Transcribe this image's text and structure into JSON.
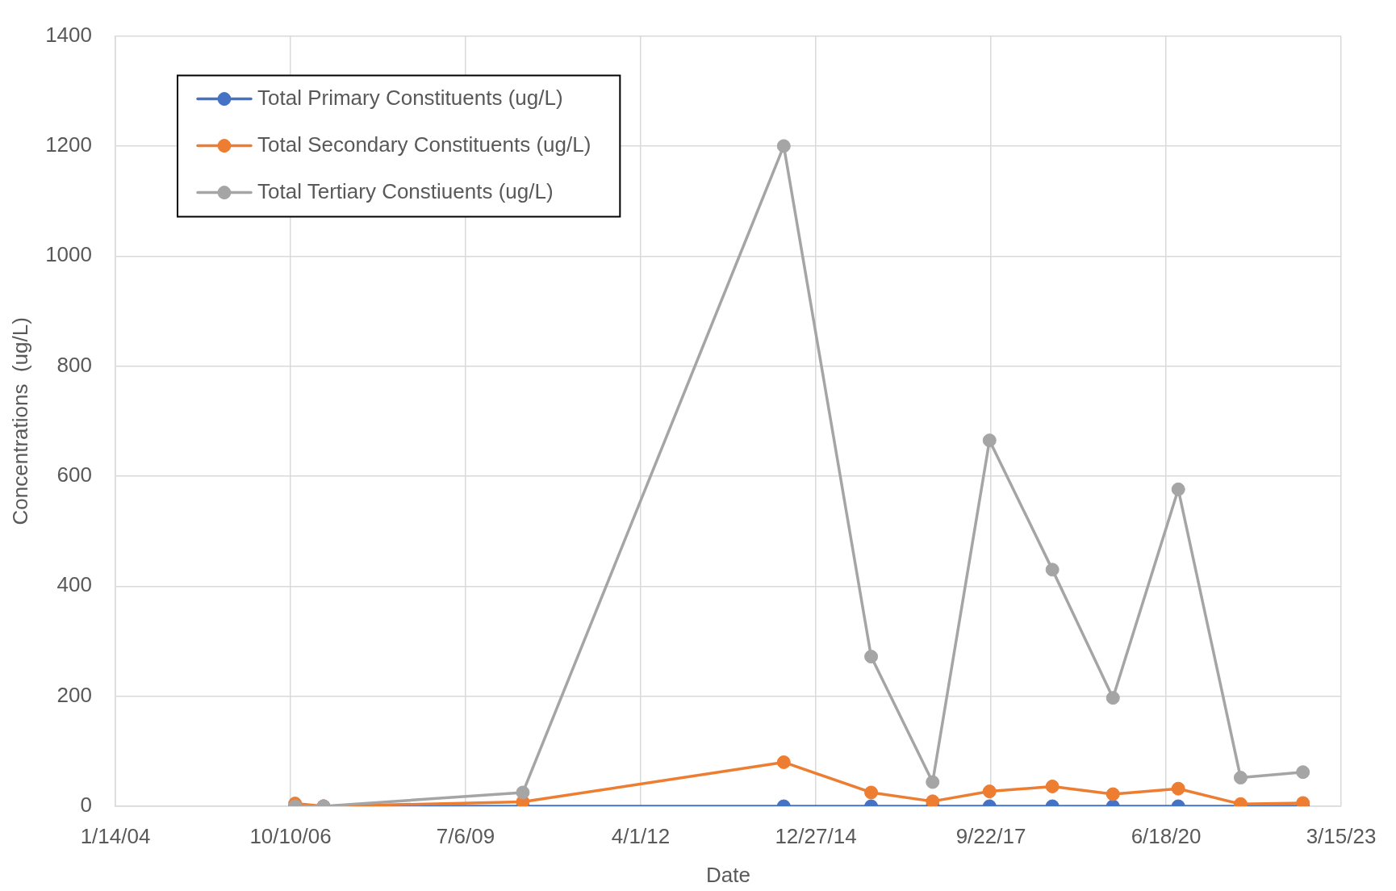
{
  "chart_data": {
    "type": "line",
    "xlabel": "Date",
    "ylabel": "Concentrations  (ug/L)",
    "x": [
      "2006-11-05",
      "2007-04-17",
      "2010-05-29",
      "2014-06-27",
      "2015-11-08",
      "2016-10-24",
      "2017-09-14",
      "2018-09-08",
      "2019-08-20",
      "2020-08-27",
      "2021-08-18",
      "2022-08-09"
    ],
    "series": [
      {
        "name": "Total Primary Constituents (ug/L)",
        "color": "#4472c4",
        "values": [
          0,
          0,
          0,
          0,
          0,
          0,
          0,
          0,
          0,
          0,
          0,
          0
        ]
      },
      {
        "name": "Total Secondary Constituents (ug/L)",
        "color": "#ed7d31",
        "values": [
          5,
          0,
          8,
          80,
          25,
          9,
          27,
          36,
          22,
          32,
          4,
          6
        ]
      },
      {
        "name": "Total Tertiary Constiuents (ug/L)",
        "color": "#a5a5a5",
        "values": [
          0,
          0,
          25,
          1200,
          272,
          44,
          665,
          430,
          197,
          576,
          52,
          62
        ]
      }
    ],
    "xlim": [
      "2004-01-14",
      "2023-03-15"
    ],
    "xticks": [
      {
        "value": "2004-01-14",
        "label": "1/14/04"
      },
      {
        "value": "2006-10-10",
        "label": "10/10/06"
      },
      {
        "value": "2009-07-06",
        "label": "7/6/09"
      },
      {
        "value": "2012-04-01",
        "label": "4/1/12"
      },
      {
        "value": "2014-12-27",
        "label": "12/27/14"
      },
      {
        "value": "2017-09-22",
        "label": "9/22/17"
      },
      {
        "value": "2020-06-18",
        "label": "6/18/20"
      },
      {
        "value": "2023-03-15",
        "label": "3/15/23"
      }
    ],
    "ylim": [
      0,
      1400
    ],
    "yticks": [
      0,
      200,
      400,
      600,
      800,
      1000,
      1200,
      1400
    ],
    "grid": true,
    "legend": "top left",
    "marker": "circle",
    "line_style": "solid"
  }
}
